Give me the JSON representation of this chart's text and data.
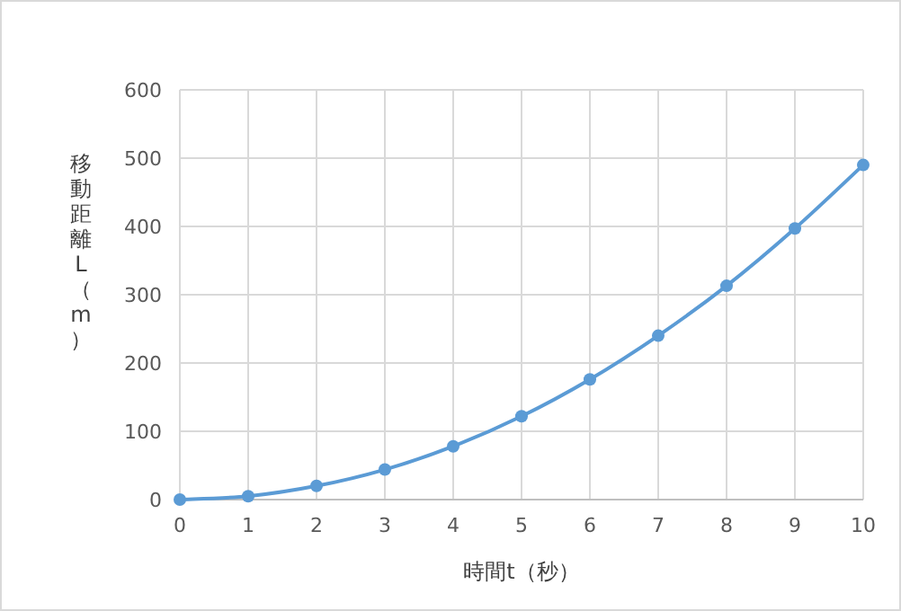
{
  "chart_data": {
    "type": "line",
    "xlabel": "時間t（秒）",
    "ylabel": "移動距離L（m）",
    "x": [
      0,
      1,
      2,
      3,
      4,
      5,
      6,
      7,
      8,
      9,
      10
    ],
    "series": [
      {
        "color": "#5b9bd5",
        "values": [
          0,
          5,
          20,
          44,
          78,
          122,
          176,
          240,
          313,
          397,
          490
        ]
      }
    ],
    "xlim": [
      0,
      10
    ],
    "xticks": [
      0,
      1,
      2,
      3,
      4,
      5,
      6,
      7,
      8,
      9,
      10
    ],
    "ylim": [
      0,
      600
    ],
    "yticks": [
      0,
      100,
      200,
      300,
      400,
      500,
      600
    ],
    "grid": true,
    "marker": "circle",
    "line_style": "solid"
  }
}
